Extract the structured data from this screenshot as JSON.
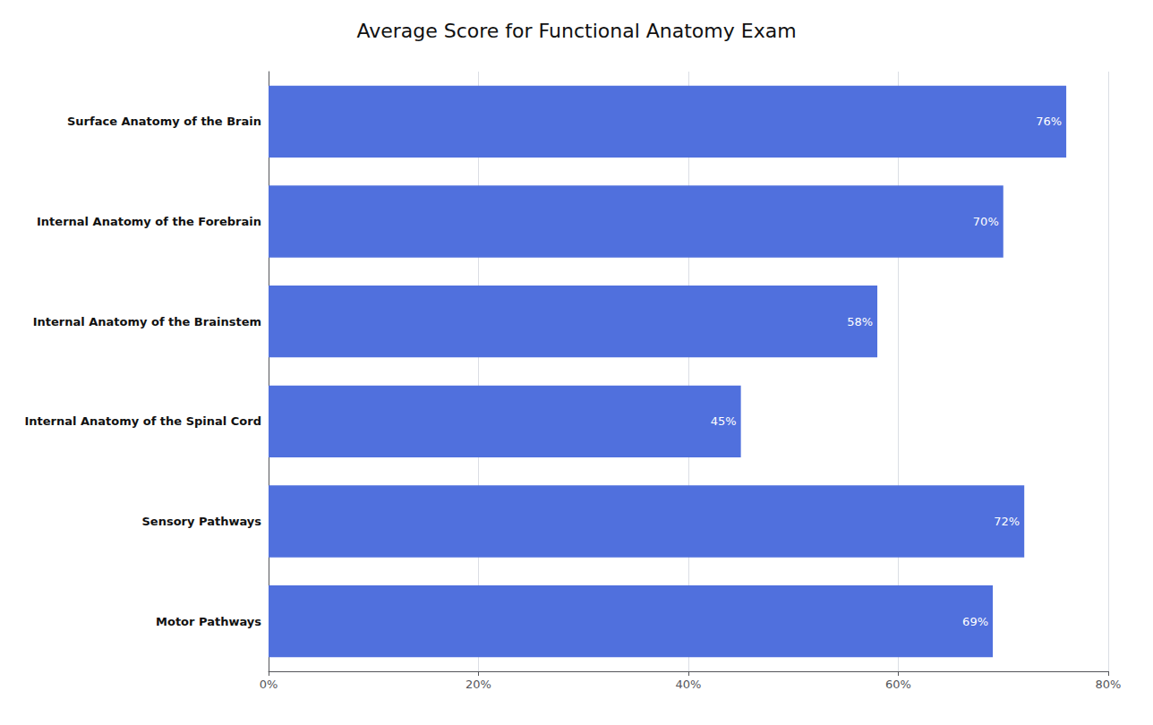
{
  "chart_data": {
    "type": "bar",
    "orientation": "horizontal",
    "title": "Average Score for Functional Anatomy Exam",
    "categories": [
      "Motor Pathways",
      "Sensory Pathways",
      "Internal Anatomy of the Spinal Cord",
      "Internal Anatomy of the Brainstem",
      "Internal Anatomy of the Forebrain",
      "Surface Anatomy of the Brain"
    ],
    "values": [
      69,
      72,
      45,
      58,
      70,
      76
    ],
    "value_labels": [
      "69%",
      "72%",
      "45%",
      "58%",
      "70%",
      "76%"
    ],
    "data_labels": true,
    "xlim": [
      0,
      80
    ],
    "xticks": [
      {
        "value": 0,
        "label": "0%"
      },
      {
        "value": 20,
        "label": "20%"
      },
      {
        "value": 40,
        "label": "40%"
      },
      {
        "value": 60,
        "label": "60%"
      },
      {
        "value": 80,
        "label": "80%"
      }
    ],
    "grid": true
  }
}
